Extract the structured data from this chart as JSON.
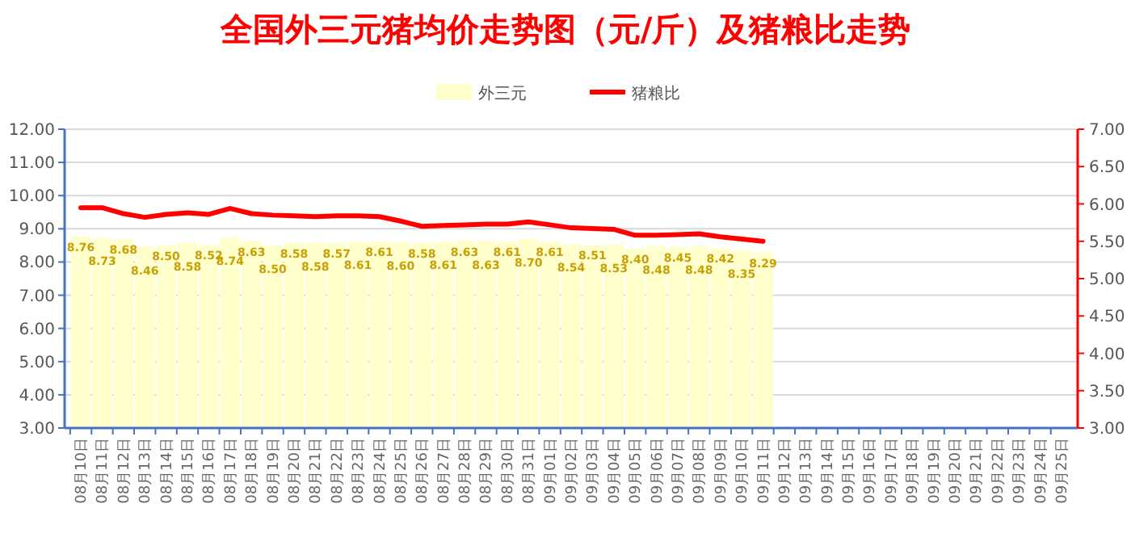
{
  "chart_data": {
    "type": "bar",
    "title": "全国外三元猪均价走势图（元/斤）及猪粮比走势",
    "categories": [
      "08月10日",
      "08月11日",
      "08月12日",
      "08月13日",
      "08月14日",
      "08月15日",
      "08月16日",
      "08月17日",
      "08月18日",
      "08月19日",
      "08月20日",
      "08月21日",
      "08月22日",
      "08月23日",
      "08月24日",
      "08月25日",
      "08月26日",
      "08月27日",
      "08月28日",
      "08月29日",
      "08月30日",
      "08月31日",
      "09月01日",
      "09月02日",
      "09月03日",
      "09月04日",
      "09月05日",
      "09月06日",
      "09月07日",
      "09月08日",
      "09月09日",
      "09月10日",
      "09月11日",
      "09月12日",
      "09月13日",
      "09月14日",
      "09月15日",
      "09月16日",
      "09月17日",
      "09月18日",
      "09月19日",
      "09月20日",
      "09月21日",
      "09月22日",
      "09月23日",
      "09月24日",
      "09月25日"
    ],
    "series": [
      {
        "name": "外三元",
        "color": "#ffffcc",
        "values": [
          8.76,
          8.73,
          8.68,
          8.46,
          8.5,
          8.58,
          8.52,
          8.74,
          8.63,
          8.5,
          8.58,
          8.58,
          8.57,
          8.61,
          8.61,
          8.6,
          8.58,
          8.61,
          8.63,
          8.63,
          8.61,
          8.7,
          8.61,
          8.54,
          8.51,
          8.53,
          8.4,
          8.48,
          8.45,
          8.48,
          8.42,
          8.35,
          8.29,
          null,
          null,
          null,
          null,
          null,
          null,
          null,
          null,
          null,
          null,
          null,
          null,
          null,
          null
        ],
        "value_labels": [
          "8.76",
          "8.73",
          "8.68",
          "8.46",
          "8.50",
          "8.58",
          "8.52",
          "8.74",
          "8.63",
          "8.50",
          "8.58",
          "8.58",
          "8.57",
          "8.61",
          "8.61",
          "8.60",
          "8.58",
          "8.61",
          "8.63",
          "8.63",
          "8.61",
          "8.70",
          "8.61",
          "8.54",
          "8.51",
          "8.53",
          "8.40",
          "8.48",
          "8.45",
          "8.48",
          "8.42",
          "8.35",
          "8.29",
          null,
          null,
          null,
          null,
          null,
          null,
          null,
          null,
          null,
          null,
          null,
          null,
          null,
          null
        ]
      },
      {
        "name": "猪粮比",
        "type": "line",
        "axis": "y2",
        "color": "#ff0000",
        "values": [
          5.95,
          5.95,
          5.87,
          5.82,
          5.86,
          5.88,
          5.86,
          5.94,
          5.87,
          5.85,
          5.84,
          5.83,
          5.84,
          5.84,
          5.83,
          5.77,
          5.7,
          5.71,
          5.72,
          5.73,
          5.73,
          5.76,
          5.72,
          5.68,
          5.67,
          5.66,
          5.58,
          5.58,
          5.59,
          5.6,
          5.56,
          5.53,
          5.5,
          null,
          null,
          null,
          null,
          null,
          null,
          null,
          null,
          null,
          null,
          null,
          null,
          null,
          null
        ]
      }
    ],
    "ylim": [
      3,
      12
    ],
    "yticks": [
      {
        "value": 3,
        "label": "3.00"
      },
      {
        "value": 4,
        "label": "4.00"
      },
      {
        "value": 5,
        "label": "5.00"
      },
      {
        "value": 6,
        "label": "6.00"
      },
      {
        "value": 7,
        "label": "7.00"
      },
      {
        "value": 8,
        "label": "8.00"
      },
      {
        "value": 9,
        "label": "9.00"
      },
      {
        "value": 10,
        "label": "10.00"
      },
      {
        "value": 11,
        "label": "11.00"
      },
      {
        "value": 12,
        "label": "12.00"
      }
    ],
    "y2lim": [
      3,
      7
    ],
    "y2ticks": [
      {
        "value": 3,
        "label": "3.00"
      },
      {
        "value": 3.5,
        "label": "3.50"
      },
      {
        "value": 4,
        "label": "4.00"
      },
      {
        "value": 4.5,
        "label": "4.50"
      },
      {
        "value": 5,
        "label": "5.00"
      },
      {
        "value": 5.5,
        "label": "5.50"
      },
      {
        "value": 6,
        "label": "6.00"
      },
      {
        "value": 6.5,
        "label": "6.50"
      },
      {
        "value": 7,
        "label": "7.00"
      }
    ],
    "grid": "y",
    "legend": "top",
    "marker": "none",
    "line_style": "solid"
  }
}
